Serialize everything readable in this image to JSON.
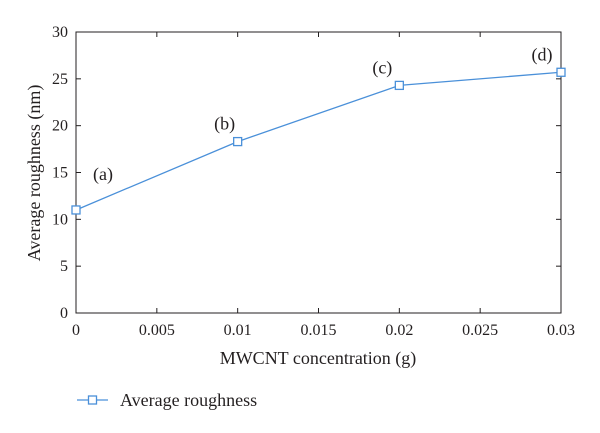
{
  "chart_data": {
    "type": "line",
    "title": "",
    "xlabel": "MWCNT concentration (g)",
    "ylabel": "Average roughness (nm)",
    "xlim": [
      0,
      0.03
    ],
    "ylim": [
      0,
      30
    ],
    "x_ticks": [
      0,
      0.005,
      0.01,
      0.015,
      0.02,
      0.025,
      0.03
    ],
    "x_tick_labels": [
      "0",
      "0.005",
      "0.01",
      "0.015",
      "0.02",
      "0.025",
      "0.03"
    ],
    "y_ticks": [
      0,
      5,
      10,
      15,
      20,
      25,
      30
    ],
    "y_tick_labels": [
      "0",
      "5",
      "10",
      "15",
      "20",
      "25",
      "30"
    ],
    "grid": false,
    "legend_position": "bottom-left",
    "series": [
      {
        "name": "Average roughness",
        "color": "#4a90d9",
        "marker": "square",
        "x": [
          0,
          0.01,
          0.02,
          0.03
        ],
        "y": [
          11,
          18.3,
          24.3,
          25.7
        ]
      }
    ],
    "annotations": [
      "(a)",
      "(b)",
      "(c)",
      "(d)"
    ]
  }
}
